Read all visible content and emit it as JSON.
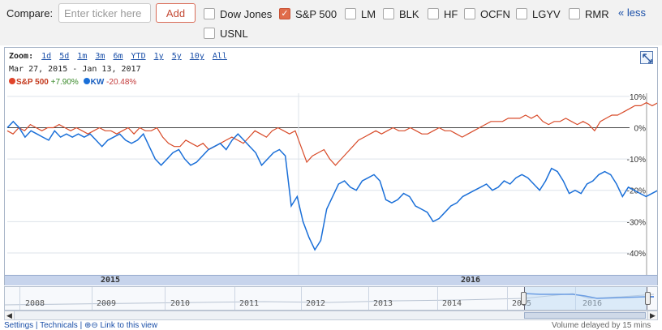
{
  "compare": {
    "label": "Compare:",
    "input_placeholder": "Enter ticker here",
    "add_label": "Add",
    "less_label": "« less",
    "tickers": [
      {
        "label": "Dow Jones",
        "checked": false
      },
      {
        "label": "S&P 500",
        "checked": true
      },
      {
        "label": "LM",
        "checked": false
      },
      {
        "label": "BLK",
        "checked": false
      },
      {
        "label": "HF",
        "checked": false
      },
      {
        "label": "OCFN",
        "checked": false
      },
      {
        "label": "LGYV",
        "checked": false
      },
      {
        "label": "RMR",
        "checked": false
      },
      {
        "label": "USNL",
        "checked": false
      }
    ]
  },
  "zoom": {
    "label": "Zoom:",
    "options": [
      "1d",
      "5d",
      "1m",
      "3m",
      "6m",
      "YTD",
      "1y",
      "5y",
      "10y",
      "All"
    ]
  },
  "date_range": {
    "start": "Mar 27, 2015",
    "sep": "-",
    "end": "Jan 13, 2017"
  },
  "legend": [
    {
      "name": "S&P 500",
      "change": "+7.90%",
      "color": "#e0432a"
    },
    {
      "name": "KW",
      "change": "-20.48%",
      "color": "#1a6fd8"
    }
  ],
  "chart_data": {
    "type": "line",
    "ylabels": [
      "10%",
      "0%",
      "-10%",
      "-20%",
      "-30%",
      "-40%"
    ],
    "yticks": [
      10,
      0,
      -10,
      -20,
      -30,
      -40
    ],
    "ylim": [
      -47,
      11
    ],
    "x_period_labels": [
      "2015",
      "2016"
    ],
    "series": [
      {
        "name": "S&P 500",
        "color": "#d84a28",
        "values": [
          -1,
          -2,
          0,
          -1,
          1,
          0,
          -1,
          0,
          0,
          1,
          0,
          -1,
          0,
          -1,
          -2,
          -1,
          0,
          -1,
          -1,
          -2,
          -1,
          0,
          -2,
          0,
          -1,
          -1,
          0,
          -3,
          -5,
          -6,
          -6,
          -4,
          -5,
          -6,
          -5,
          -7,
          -6,
          -5,
          -4,
          -3,
          -4,
          -5,
          -3,
          -1,
          -2,
          -3,
          -1,
          0,
          -1,
          -2,
          -1,
          -6,
          -11,
          -9,
          -8,
          -7,
          -10,
          -12,
          -10,
          -8,
          -6,
          -4,
          -3,
          -2,
          -1,
          -2,
          -1,
          0,
          -1,
          -1,
          0,
          -1,
          -2,
          -2,
          -1,
          0,
          -1,
          -1,
          -2,
          -3,
          -2,
          -1,
          0,
          1,
          2,
          2,
          2,
          3,
          3,
          3,
          4,
          3,
          4,
          2,
          1,
          2,
          2,
          3,
          2,
          1,
          2,
          1,
          -1,
          2,
          3,
          4,
          4,
          5,
          6,
          7,
          7,
          8,
          7,
          8
        ]
      },
      {
        "name": "KW",
        "color": "#1a6fd8",
        "values": [
          0,
          2,
          0,
          -3,
          -1,
          -2,
          -3,
          -4,
          -1,
          -3,
          -2,
          -3,
          -2,
          -3,
          -2,
          -4,
          -6,
          -4,
          -3,
          -2,
          -4,
          -5,
          -4,
          -2,
          -6,
          -10,
          -12,
          -10,
          -8,
          -7,
          -10,
          -12,
          -11,
          -9,
          -7,
          -6,
          -5,
          -7,
          -4,
          -2,
          -4,
          -6,
          -8,
          -12,
          -10,
          -8,
          -7,
          -9,
          -25,
          -22,
          -30,
          -35,
          -39,
          -36,
          -26,
          -22,
          -18,
          -17,
          -19,
          -20,
          -17,
          -16,
          -15,
          -17,
          -23,
          -24,
          -23,
          -21,
          -22,
          -25,
          -26,
          -27,
          -30,
          -29,
          -27,
          -25,
          -24,
          -22,
          -21,
          -20,
          -19,
          -18,
          -20,
          -19,
          -17,
          -18,
          -16,
          -15,
          -16,
          -18,
          -20,
          -17,
          -13,
          -14,
          -17,
          -21,
          -20,
          -21,
          -18,
          -17,
          -15,
          -14,
          -15,
          -18,
          -22,
          -19,
          -20,
          -21,
          -22,
          -21,
          -20
        ]
      }
    ]
  },
  "navigator": {
    "years": [
      "2008",
      "2009",
      "2010",
      "2011",
      "2012",
      "2013",
      "2014",
      "2015",
      "2016"
    ]
  },
  "footer": {
    "left": "Settings | Technicals | ⊕⊖ Link to this view",
    "right": "Volume delayed by 15 mins"
  }
}
